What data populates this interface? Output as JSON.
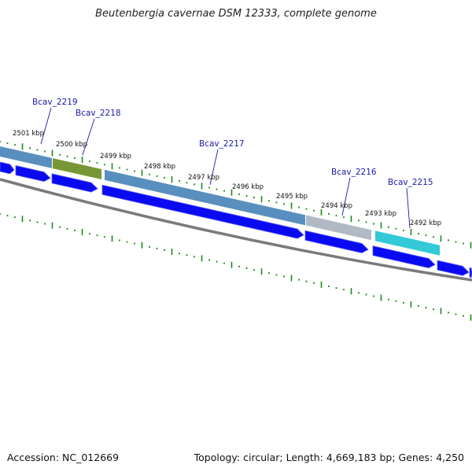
{
  "title": "Beutenbergia cavernae DSM 12333, complete genome",
  "footer": {
    "accession": "Accession: NC_012669",
    "summary": "Topology: circular; Length: 4,669,183 bp; Genes: 4,250"
  },
  "colors": {
    "cds_arrow": "#0a0af0",
    "backbone": "#7a7a7a",
    "tick": "#1a8a1a",
    "gene_label": "#1a1aa6",
    "leader": "#1a1aa6"
  },
  "scale_labels": [
    "2501 kbp",
    "2500 kbp",
    "2499 kbp",
    "2498 kbp",
    "2497 kbp",
    "2496 kbp",
    "2495 kbp",
    "2494 kbp",
    "2493 kbp",
    "2492 kbp"
  ],
  "genes": [
    {
      "label": "Bcav_2219",
      "feature_color": "#4a86b8"
    },
    {
      "label": "Bcav_2218",
      "feature_color": "#6b8e23"
    },
    {
      "label": "Bcav_2217",
      "feature_color": "#4a86b8"
    },
    {
      "label": "Bcav_2216",
      "feature_color": "#a9b3bf"
    },
    {
      "label": "Bcav_2215",
      "feature_color": "#22c4d4"
    }
  ]
}
